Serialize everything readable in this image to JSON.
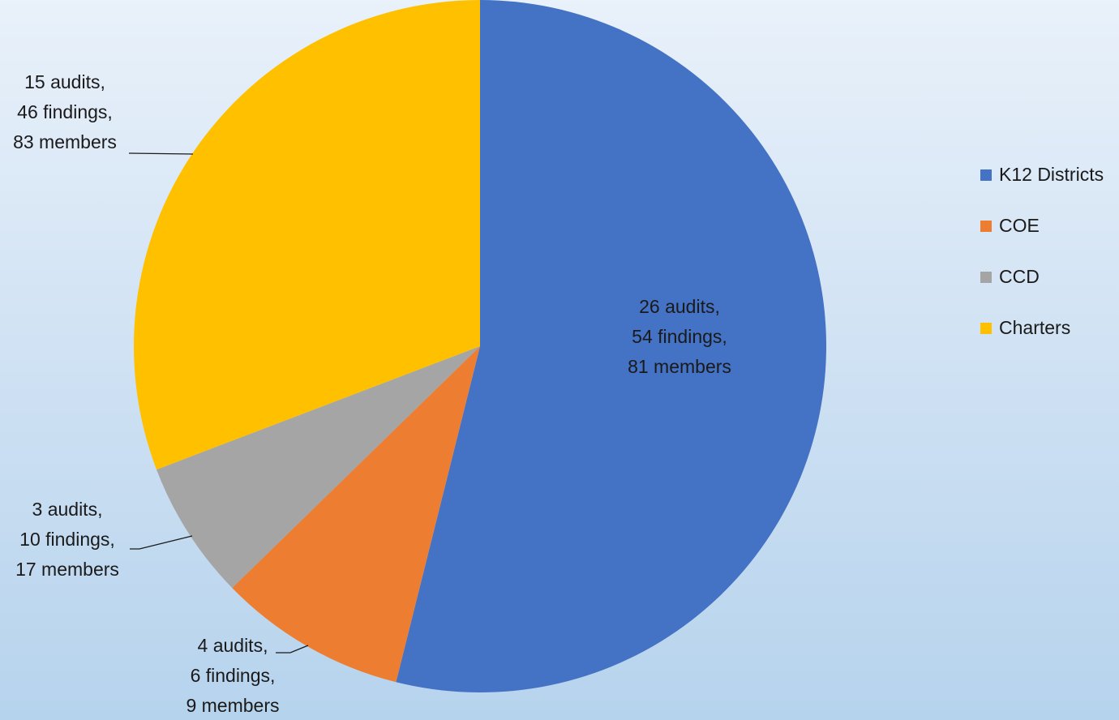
{
  "chart_data": {
    "type": "pie",
    "title": "",
    "start_angle_deg": 0,
    "direction": "clockwise",
    "legend_position": "right",
    "categories": [
      "K12 Districts",
      "COE",
      "CCD",
      "Charters"
    ],
    "values": [
      53.9,
      8.8,
      6.5,
      30.8
    ],
    "colors": [
      "#4472c4",
      "#ed7d31",
      "#a5a5a5",
      "#ffc000"
    ],
    "data_labels": [
      [
        "26 audits,",
        "54 findings,",
        "81 members"
      ],
      [
        "4 audits,",
        "6 findings,",
        "9 members"
      ],
      [
        "3 audits,",
        "10 findings,",
        "17 members"
      ],
      [
        "15 audits,",
        "46 findings,",
        "83 members"
      ]
    ]
  }
}
